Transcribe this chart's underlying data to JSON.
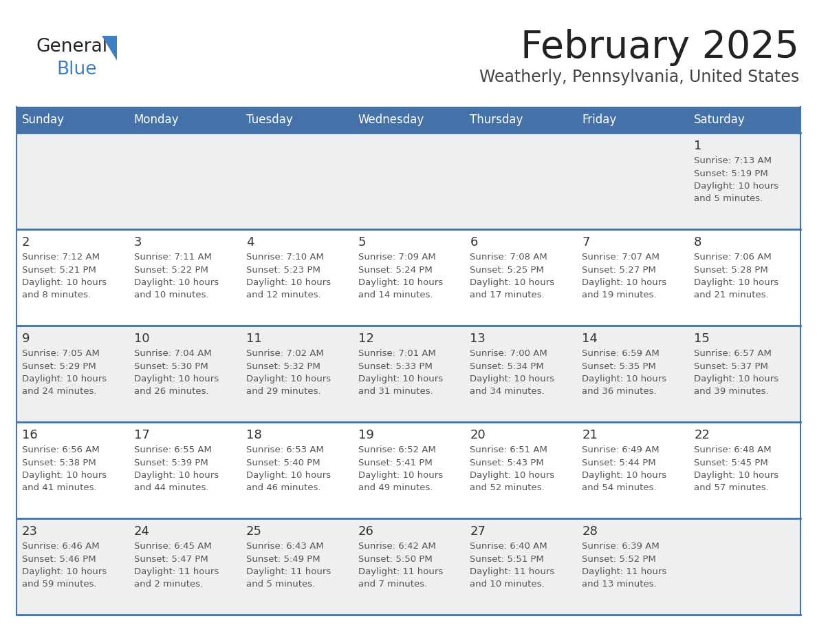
{
  "title": "February 2025",
  "subtitle": "Weatherly, Pennsylvania, United States",
  "header_bg_color": "#4472a8",
  "header_text_color": "#ffffff",
  "day_names": [
    "Sunday",
    "Monday",
    "Tuesday",
    "Wednesday",
    "Thursday",
    "Friday",
    "Saturday"
  ],
  "title_color": "#222222",
  "subtitle_color": "#444444",
  "cell_text_color": "#555555",
  "day_num_color": "#333333",
  "border_color": "#4472a8",
  "bg_color_odd": "#efefef",
  "bg_color_even": "#ffffff",
  "logo_general_color": "#222222",
  "logo_blue_color": "#4080c0",
  "logo_triangle_color": "#4080c0",
  "calendar_data": [
    [
      {
        "day": null,
        "info": ""
      },
      {
        "day": null,
        "info": ""
      },
      {
        "day": null,
        "info": ""
      },
      {
        "day": null,
        "info": ""
      },
      {
        "day": null,
        "info": ""
      },
      {
        "day": null,
        "info": ""
      },
      {
        "day": 1,
        "info": "Sunrise: 7:13 AM\nSunset: 5:19 PM\nDaylight: 10 hours\nand 5 minutes."
      }
    ],
    [
      {
        "day": 2,
        "info": "Sunrise: 7:12 AM\nSunset: 5:21 PM\nDaylight: 10 hours\nand 8 minutes."
      },
      {
        "day": 3,
        "info": "Sunrise: 7:11 AM\nSunset: 5:22 PM\nDaylight: 10 hours\nand 10 minutes."
      },
      {
        "day": 4,
        "info": "Sunrise: 7:10 AM\nSunset: 5:23 PM\nDaylight: 10 hours\nand 12 minutes."
      },
      {
        "day": 5,
        "info": "Sunrise: 7:09 AM\nSunset: 5:24 PM\nDaylight: 10 hours\nand 14 minutes."
      },
      {
        "day": 6,
        "info": "Sunrise: 7:08 AM\nSunset: 5:25 PM\nDaylight: 10 hours\nand 17 minutes."
      },
      {
        "day": 7,
        "info": "Sunrise: 7:07 AM\nSunset: 5:27 PM\nDaylight: 10 hours\nand 19 minutes."
      },
      {
        "day": 8,
        "info": "Sunrise: 7:06 AM\nSunset: 5:28 PM\nDaylight: 10 hours\nand 21 minutes."
      }
    ],
    [
      {
        "day": 9,
        "info": "Sunrise: 7:05 AM\nSunset: 5:29 PM\nDaylight: 10 hours\nand 24 minutes."
      },
      {
        "day": 10,
        "info": "Sunrise: 7:04 AM\nSunset: 5:30 PM\nDaylight: 10 hours\nand 26 minutes."
      },
      {
        "day": 11,
        "info": "Sunrise: 7:02 AM\nSunset: 5:32 PM\nDaylight: 10 hours\nand 29 minutes."
      },
      {
        "day": 12,
        "info": "Sunrise: 7:01 AM\nSunset: 5:33 PM\nDaylight: 10 hours\nand 31 minutes."
      },
      {
        "day": 13,
        "info": "Sunrise: 7:00 AM\nSunset: 5:34 PM\nDaylight: 10 hours\nand 34 minutes."
      },
      {
        "day": 14,
        "info": "Sunrise: 6:59 AM\nSunset: 5:35 PM\nDaylight: 10 hours\nand 36 minutes."
      },
      {
        "day": 15,
        "info": "Sunrise: 6:57 AM\nSunset: 5:37 PM\nDaylight: 10 hours\nand 39 minutes."
      }
    ],
    [
      {
        "day": 16,
        "info": "Sunrise: 6:56 AM\nSunset: 5:38 PM\nDaylight: 10 hours\nand 41 minutes."
      },
      {
        "day": 17,
        "info": "Sunrise: 6:55 AM\nSunset: 5:39 PM\nDaylight: 10 hours\nand 44 minutes."
      },
      {
        "day": 18,
        "info": "Sunrise: 6:53 AM\nSunset: 5:40 PM\nDaylight: 10 hours\nand 46 minutes."
      },
      {
        "day": 19,
        "info": "Sunrise: 6:52 AM\nSunset: 5:41 PM\nDaylight: 10 hours\nand 49 minutes."
      },
      {
        "day": 20,
        "info": "Sunrise: 6:51 AM\nSunset: 5:43 PM\nDaylight: 10 hours\nand 52 minutes."
      },
      {
        "day": 21,
        "info": "Sunrise: 6:49 AM\nSunset: 5:44 PM\nDaylight: 10 hours\nand 54 minutes."
      },
      {
        "day": 22,
        "info": "Sunrise: 6:48 AM\nSunset: 5:45 PM\nDaylight: 10 hours\nand 57 minutes."
      }
    ],
    [
      {
        "day": 23,
        "info": "Sunrise: 6:46 AM\nSunset: 5:46 PM\nDaylight: 10 hours\nand 59 minutes."
      },
      {
        "day": 24,
        "info": "Sunrise: 6:45 AM\nSunset: 5:47 PM\nDaylight: 11 hours\nand 2 minutes."
      },
      {
        "day": 25,
        "info": "Sunrise: 6:43 AM\nSunset: 5:49 PM\nDaylight: 11 hours\nand 5 minutes."
      },
      {
        "day": 26,
        "info": "Sunrise: 6:42 AM\nSunset: 5:50 PM\nDaylight: 11 hours\nand 7 minutes."
      },
      {
        "day": 27,
        "info": "Sunrise: 6:40 AM\nSunset: 5:51 PM\nDaylight: 11 hours\nand 10 minutes."
      },
      {
        "day": 28,
        "info": "Sunrise: 6:39 AM\nSunset: 5:52 PM\nDaylight: 11 hours\nand 13 minutes."
      },
      {
        "day": null,
        "info": ""
      }
    ]
  ]
}
